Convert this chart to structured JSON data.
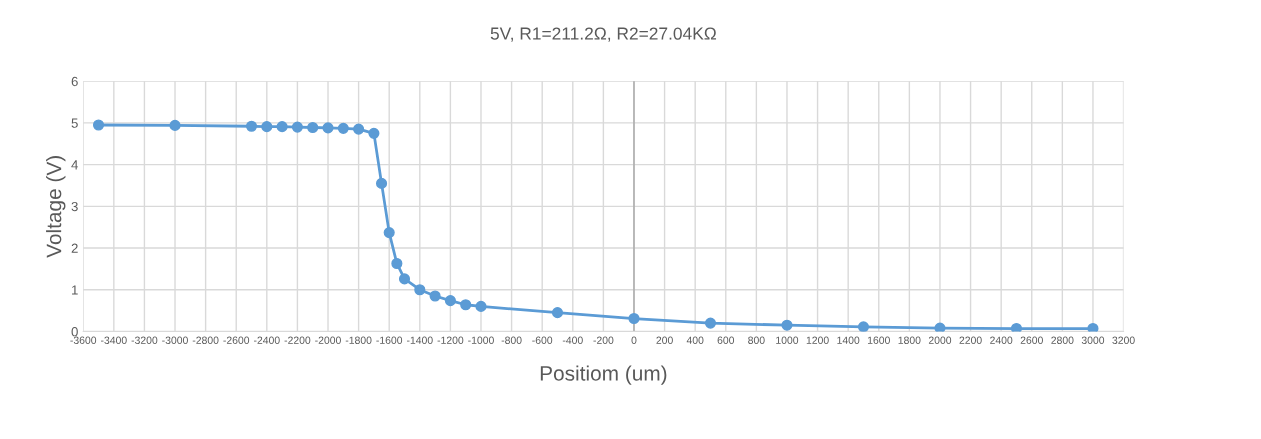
{
  "chart_data": {
    "type": "line",
    "title": "5V, R1=211.2Ω, R2=27.04KΩ",
    "xlabel": "Positiom (um)",
    "ylabel": "Voltage (V)",
    "x": [
      -3500,
      -3000,
      -2500,
      -2400,
      -2300,
      -2200,
      -2100,
      -2000,
      -1900,
      -1800,
      -1700,
      -1650,
      -1600,
      -1550,
      -1500,
      -1400,
      -1300,
      -1200,
      -1100,
      -1000,
      -500,
      0,
      500,
      1000,
      1500,
      2000,
      2500,
      3000
    ],
    "series": [
      {
        "color": "#5b9bd5",
        "values": [
          4.95,
          4.94,
          4.92,
          4.91,
          4.91,
          4.9,
          4.89,
          4.88,
          4.87,
          4.85,
          4.75,
          3.55,
          2.37,
          1.63,
          1.26,
          1.0,
          0.85,
          0.74,
          0.64,
          0.6,
          0.45,
          0.31,
          0.2,
          0.15,
          0.11,
          0.08,
          0.07,
          0.07
        ]
      }
    ],
    "xlim": [
      -3600,
      3200
    ],
    "xticks": [
      -3600,
      -3400,
      -3200,
      -3000,
      -2800,
      -2600,
      -2400,
      -2200,
      -2000,
      -1800,
      -1600,
      -1400,
      -1200,
      -1000,
      -800,
      -600,
      -400,
      -200,
      0,
      200,
      400,
      600,
      800,
      1000,
      1200,
      1400,
      1600,
      1800,
      2000,
      2200,
      2400,
      2600,
      2800,
      3000,
      3200
    ],
    "ylim": [
      0,
      6
    ],
    "yticks": [
      0,
      1,
      2,
      3,
      4,
      5,
      6
    ],
    "ref_lines": [
      {
        "axis": "x",
        "value": 0,
        "color": "#a6a6a6"
      }
    ],
    "grid": true,
    "marker": "circle",
    "line_style": "solid",
    "legend": false
  }
}
